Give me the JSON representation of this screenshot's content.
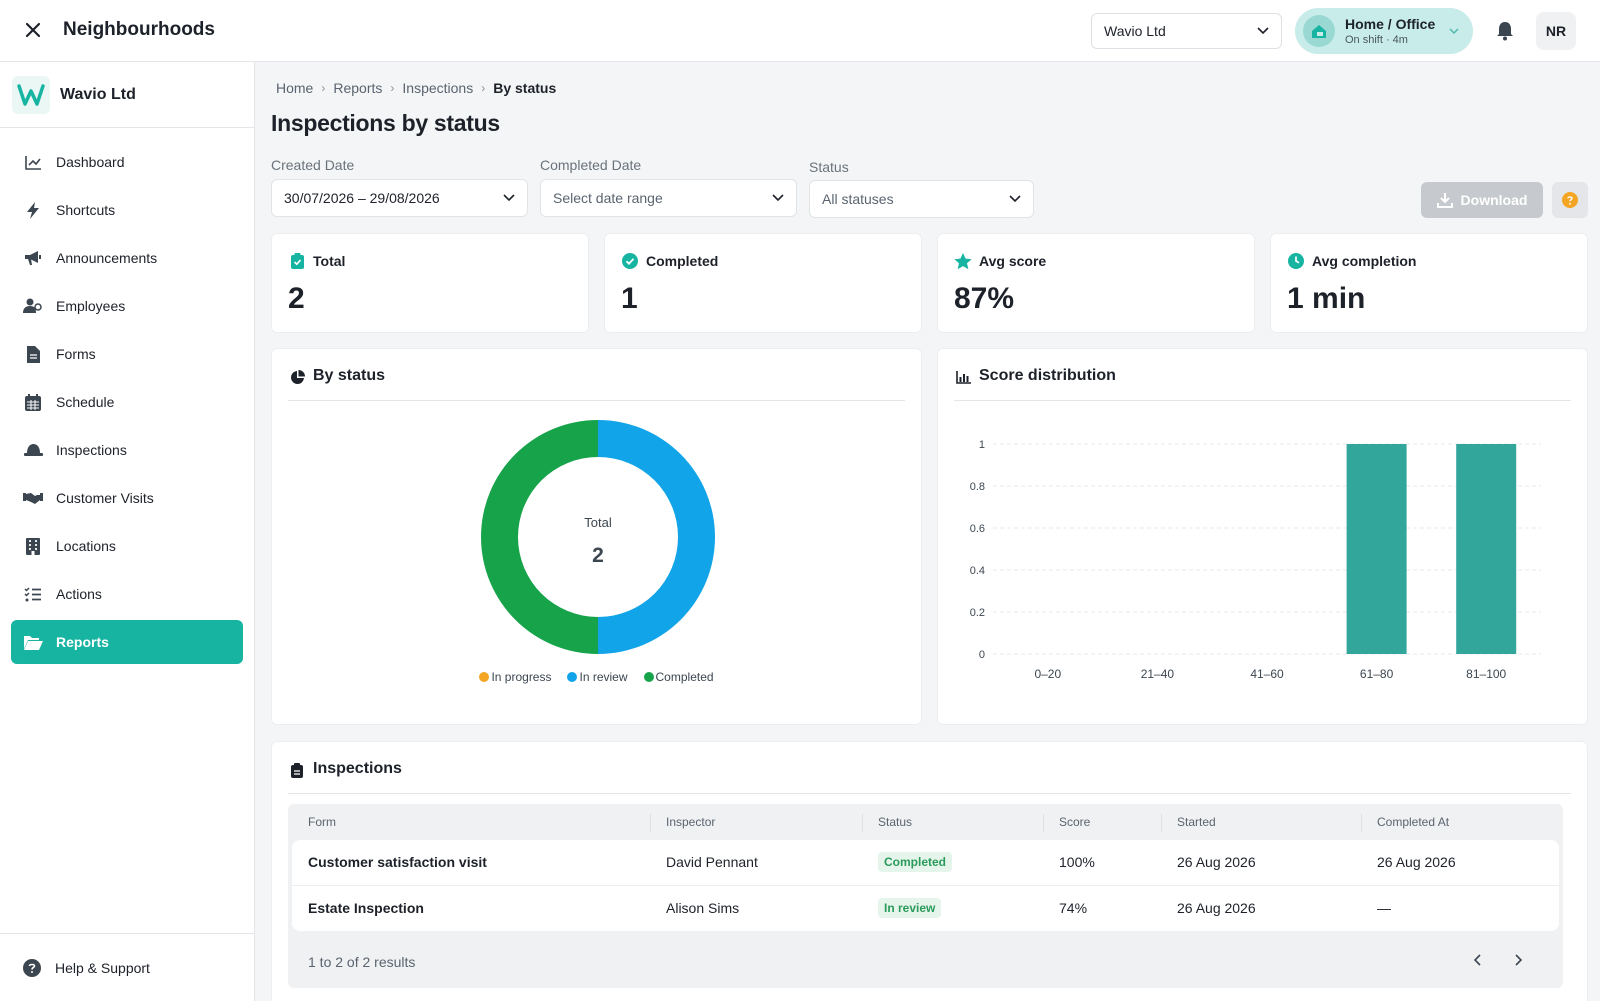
{
  "topbar": {
    "title": "Neighbourhoods",
    "org_select": "Wavio Ltd",
    "shift": {
      "title": "Home / Office",
      "subtitle": "On shift · 4m"
    },
    "avatar_initials": "NR"
  },
  "sidebar": {
    "brand": "Wavio Ltd",
    "items": [
      {
        "label": "Dashboard",
        "icon": "chart-line-icon"
      },
      {
        "label": "Shortcuts",
        "icon": "bolt-icon"
      },
      {
        "label": "Announcements",
        "icon": "megaphone-icon"
      },
      {
        "label": "Employees",
        "icon": "users-icon"
      },
      {
        "label": "Forms",
        "icon": "file-icon"
      },
      {
        "label": "Schedule",
        "icon": "calendar-icon"
      },
      {
        "label": "Inspections",
        "icon": "hard-hat-icon"
      },
      {
        "label": "Customer Visits",
        "icon": "handshake-icon"
      },
      {
        "label": "Locations",
        "icon": "building-icon"
      },
      {
        "label": "Actions",
        "icon": "list-check-icon"
      },
      {
        "label": "Reports",
        "icon": "folder-open-icon",
        "active": true
      }
    ],
    "footer": "Help & Support"
  },
  "breadcrumb": [
    "Home",
    "Reports",
    "Inspections",
    "By status"
  ],
  "page_title": "Inspections by status",
  "filters": {
    "created_label": "Created Date",
    "created_value": "30/07/2026 – 29/08/2026",
    "completed_label": "Completed Date",
    "completed_placeholder": "Select date range",
    "status_label": "Status",
    "status_value": "All statuses",
    "download_label": "Download"
  },
  "stats": [
    {
      "label": "Total",
      "value": "2",
      "icon": "clipboard-check-icon"
    },
    {
      "label": "Completed",
      "value": "1",
      "icon": "check-circle-icon"
    },
    {
      "label": "Avg score",
      "value": "87%",
      "icon": "star-icon"
    },
    {
      "label": "Avg completion",
      "value": "1 min",
      "icon": "clock-icon"
    }
  ],
  "by_status": {
    "title": "By status",
    "center_label": "Total",
    "center_value": "2",
    "legend": [
      {
        "name": "In progress",
        "color": "#f5a524"
      },
      {
        "name": "In review",
        "color": "#12a4e8"
      },
      {
        "name": "Completed",
        "color": "#17a34a"
      }
    ]
  },
  "score_distribution": {
    "title": "Score distribution"
  },
  "chart_data": [
    {
      "type": "pie",
      "donut": true,
      "labels": [
        "In progress",
        "In review",
        "Completed"
      ],
      "values": [
        0,
        1,
        1
      ],
      "colors": [
        "#f5a524",
        "#12a4e8",
        "#17a34a"
      ]
    },
    {
      "type": "bar",
      "categories": [
        "0–20",
        "21–40",
        "41–60",
        "61–80",
        "81–100"
      ],
      "values": [
        0,
        0,
        0,
        1,
        1
      ],
      "ylim": [
        0,
        1
      ],
      "yticks": [
        "0",
        "0.2",
        "0.4",
        "0.6",
        "0.8",
        "1"
      ],
      "grid": true,
      "color": "#33a69c"
    }
  ],
  "inspections": {
    "title": "Inspections",
    "columns": [
      "Form",
      "Inspector",
      "Status",
      "Score",
      "Started",
      "Completed At"
    ],
    "rows": [
      {
        "form": "Customer satisfaction visit",
        "inspector": "David Pennant",
        "status": "Completed",
        "score": "100%",
        "started": "26 Aug 2026",
        "completed_at": "26 Aug 2026"
      },
      {
        "form": "Estate Inspection",
        "inspector": "Alison Sims",
        "status": "In review",
        "score": "74%",
        "started": "26 Aug 2026",
        "completed_at": "—"
      }
    ],
    "footer": "1 to 2 of 2 results"
  }
}
